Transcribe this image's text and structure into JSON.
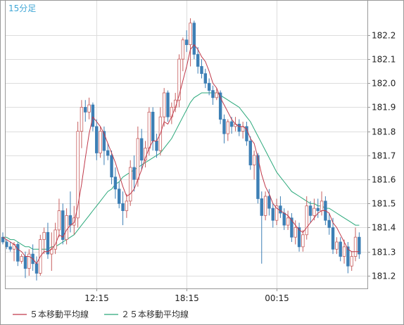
{
  "colors": {
    "frame": "#999999",
    "grid": "#dddddd",
    "up": "#c75f5f",
    "down": "#3d7fb5",
    "ma5": "#c0394a",
    "ma25": "#2aa87a",
    "interval_label": "#41a7d6"
  },
  "chart_data": {
    "type": "candlestick",
    "interval_label": "15分足",
    "y_ticks": [
      "182.2",
      "182.1",
      "182.0",
      "181.9",
      "181.8",
      "181.7",
      "181.6",
      "181.5",
      "181.4",
      "181.3",
      "181.2"
    ],
    "x_ticks": [
      "12:15",
      "18:15",
      "00:15"
    ],
    "ylim": [
      181.147,
      182.343
    ],
    "grid": true,
    "legend_position": "bottom-left",
    "legend": [
      {
        "label": "５本移動平均線",
        "series": "ma5"
      },
      {
        "label": "２５本移動平均線",
        "series": "ma25"
      }
    ],
    "candles_ohlc": [
      [
        181.36,
        181.38,
        181.33,
        181.34
      ],
      [
        181.34,
        181.35,
        181.31,
        181.32
      ],
      [
        181.32,
        181.34,
        181.3,
        181.31
      ],
      [
        181.31,
        181.34,
        181.26,
        181.33
      ],
      [
        181.33,
        181.34,
        181.24,
        181.26
      ],
      [
        181.26,
        181.29,
        181.25,
        181.28
      ],
      [
        181.28,
        181.3,
        181.19,
        181.23
      ],
      [
        181.23,
        181.31,
        181.2,
        181.29
      ],
      [
        181.29,
        181.33,
        181.22,
        181.25
      ],
      [
        181.25,
        181.28,
        181.18,
        181.21
      ],
      [
        181.21,
        181.37,
        181.2,
        181.35
      ],
      [
        181.35,
        181.4,
        181.29,
        181.38
      ],
      [
        181.38,
        181.42,
        181.27,
        181.29
      ],
      [
        181.29,
        181.38,
        181.22,
        181.31
      ],
      [
        181.31,
        181.42,
        181.29,
        181.39
      ],
      [
        181.39,
        181.52,
        181.36,
        181.47
      ],
      [
        181.47,
        181.5,
        181.33,
        181.35
      ],
      [
        181.35,
        181.48,
        181.33,
        181.45
      ],
      [
        181.45,
        181.55,
        181.38,
        181.41
      ],
      [
        181.41,
        181.49,
        181.37,
        181.44
      ],
      [
        181.44,
        181.84,
        181.4,
        181.8
      ],
      [
        181.8,
        181.93,
        181.73,
        181.9
      ],
      [
        181.9,
        181.93,
        181.84,
        181.88
      ],
      [
        181.88,
        181.94,
        181.85,
        181.91
      ],
      [
        181.91,
        181.92,
        181.8,
        181.82
      ],
      [
        181.82,
        181.85,
        181.68,
        181.71
      ],
      [
        181.71,
        181.82,
        181.69,
        181.8
      ],
      [
        181.8,
        181.82,
        181.66,
        181.72
      ],
      [
        181.72,
        181.75,
        181.68,
        181.7
      ],
      [
        181.7,
        181.72,
        181.58,
        181.61
      ],
      [
        181.61,
        181.65,
        181.52,
        181.56
      ],
      [
        181.56,
        181.59,
        181.48,
        181.5
      ],
      [
        181.5,
        181.55,
        181.41,
        181.47
      ],
      [
        181.47,
        181.54,
        181.44,
        181.51
      ],
      [
        181.51,
        181.68,
        181.49,
        181.65
      ],
      [
        181.65,
        181.7,
        181.55,
        181.6
      ],
      [
        181.6,
        181.82,
        181.57,
        181.77
      ],
      [
        181.77,
        181.81,
        181.64,
        181.68
      ],
      [
        181.68,
        181.76,
        181.65,
        181.73
      ],
      [
        181.73,
        181.9,
        181.7,
        181.88
      ],
      [
        181.88,
        181.9,
        181.72,
        181.76
      ],
      [
        181.76,
        181.79,
        181.69,
        181.72
      ],
      [
        181.72,
        181.9,
        181.7,
        181.86
      ],
      [
        181.86,
        181.98,
        181.82,
        181.96
      ],
      [
        181.96,
        181.97,
        181.84,
        181.86
      ],
      [
        181.86,
        181.92,
        181.83,
        181.9
      ],
      [
        181.9,
        181.96,
        181.88,
        181.93
      ],
      [
        181.93,
        182.12,
        181.9,
        182.1
      ],
      [
        182.1,
        182.19,
        182.05,
        182.18
      ],
      [
        182.18,
        182.22,
        182.13,
        182.16
      ],
      [
        182.16,
        182.27,
        182.07,
        182.25
      ],
      [
        182.25,
        182.26,
        182.1,
        182.12
      ],
      [
        182.12,
        182.15,
        182.04,
        182.07
      ],
      [
        182.07,
        182.1,
        182.02,
        182.04
      ],
      [
        182.04,
        182.06,
        181.98,
        182.0
      ],
      [
        182.0,
        182.02,
        181.95,
        181.97
      ],
      [
        181.97,
        181.99,
        181.91,
        181.94
      ],
      [
        181.94,
        181.98,
        181.93,
        181.96
      ],
      [
        181.96,
        181.97,
        181.83,
        181.85
      ],
      [
        181.85,
        181.87,
        181.75,
        181.79
      ],
      [
        181.79,
        181.85,
        181.76,
        181.84
      ],
      [
        181.84,
        181.86,
        181.79,
        181.82
      ],
      [
        181.82,
        181.86,
        181.8,
        181.83
      ],
      [
        181.83,
        181.85,
        181.78,
        181.8
      ],
      [
        181.8,
        181.84,
        181.77,
        181.82
      ],
      [
        181.82,
        181.84,
        181.74,
        181.76
      ],
      [
        181.76,
        181.78,
        181.64,
        181.66
      ],
      [
        181.66,
        181.72,
        181.6,
        181.7
      ],
      [
        181.7,
        181.71,
        181.5,
        181.52
      ],
      [
        181.52,
        181.55,
        181.25,
        181.45
      ],
      [
        181.45,
        181.55,
        181.43,
        181.53
      ],
      [
        181.53,
        181.56,
        181.45,
        181.48
      ],
      [
        181.48,
        181.5,
        181.4,
        181.43
      ],
      [
        181.43,
        181.52,
        181.41,
        181.49
      ],
      [
        181.49,
        181.53,
        181.44,
        181.46
      ],
      [
        181.46,
        181.48,
        181.39,
        181.41
      ],
      [
        181.41,
        181.47,
        181.39,
        181.44
      ],
      [
        181.44,
        181.46,
        181.34,
        181.36
      ],
      [
        181.36,
        181.43,
        181.33,
        181.4
      ],
      [
        181.4,
        181.42,
        181.3,
        181.32
      ],
      [
        181.32,
        181.39,
        181.3,
        181.37
      ],
      [
        181.37,
        181.53,
        181.35,
        181.49
      ],
      [
        181.49,
        181.51,
        181.42,
        181.45
      ],
      [
        181.45,
        181.52,
        181.43,
        181.48
      ],
      [
        181.48,
        181.52,
        181.44,
        181.47
      ],
      [
        181.47,
        181.55,
        181.45,
        181.51
      ],
      [
        181.51,
        181.53,
        181.41,
        181.43
      ],
      [
        181.43,
        181.46,
        181.37,
        181.4
      ],
      [
        181.4,
        181.44,
        181.29,
        181.31
      ],
      [
        181.31,
        181.36,
        181.29,
        181.34
      ],
      [
        181.34,
        181.36,
        181.26,
        181.28
      ],
      [
        181.28,
        181.35,
        181.25,
        181.32
      ],
      [
        181.32,
        181.34,
        181.21,
        181.24
      ],
      [
        181.24,
        181.3,
        181.22,
        181.28
      ],
      [
        181.28,
        181.4,
        181.26,
        181.36
      ],
      [
        181.36,
        181.38,
        181.27,
        181.29
      ]
    ],
    "ma5": [
      181.36,
      181.35,
      181.34,
      181.33,
      181.31,
      181.3,
      181.28,
      181.28,
      181.27,
      181.25,
      181.28,
      181.3,
      181.3,
      181.31,
      181.33,
      181.37,
      181.36,
      181.39,
      181.41,
      181.42,
      181.49,
      181.58,
      181.69,
      181.79,
      181.86,
      181.84,
      181.82,
      181.79,
      181.75,
      181.71,
      181.67,
      181.62,
      181.57,
      181.53,
      181.54,
      181.56,
      181.6,
      181.64,
      181.69,
      181.73,
      181.76,
      181.76,
      181.79,
      181.84,
      181.83,
      181.86,
      181.9,
      181.95,
      182.01,
      182.07,
      182.14,
      182.16,
      182.14,
      182.11,
      182.09,
      182.05,
      182.0,
      181.98,
      181.94,
      181.91,
      181.88,
      181.85,
      181.83,
      181.82,
      181.82,
      181.81,
      181.77,
      181.75,
      181.69,
      181.62,
      181.57,
      181.54,
      181.5,
      181.48,
      181.47,
      181.46,
      181.45,
      181.43,
      181.41,
      181.39,
      181.38,
      181.4,
      181.42,
      181.44,
      181.46,
      181.47,
      181.47,
      181.46,
      181.42,
      181.4,
      181.37,
      181.34,
      181.31,
      181.3,
      181.3,
      181.3
    ],
    "ma25": [
      181.36,
      181.36,
      181.35,
      181.35,
      181.34,
      181.33,
      181.32,
      181.32,
      181.31,
      181.31,
      181.31,
      181.31,
      181.31,
      181.32,
      181.32,
      181.33,
      181.34,
      181.35,
      181.36,
      181.37,
      181.39,
      181.41,
      181.43,
      181.45,
      181.47,
      181.49,
      181.51,
      181.53,
      181.55,
      181.56,
      181.58,
      181.59,
      181.61,
      181.62,
      181.63,
      181.64,
      181.65,
      181.66,
      181.67,
      181.68,
      181.69,
      181.7,
      181.71,
      181.73,
      181.75,
      181.77,
      181.8,
      181.83,
      181.86,
      181.89,
      181.92,
      181.94,
      181.95,
      181.96,
      181.96,
      181.96,
      181.96,
      181.96,
      181.95,
      181.94,
      181.93,
      181.92,
      181.91,
      181.9,
      181.88,
      181.86,
      181.84,
      181.81,
      181.78,
      181.75,
      181.72,
      181.69,
      181.66,
      181.63,
      181.61,
      181.59,
      181.57,
      181.55,
      181.54,
      181.53,
      181.52,
      181.51,
      181.5,
      181.5,
      181.49,
      181.49,
      181.48,
      181.48,
      181.47,
      181.46,
      181.45,
      181.44,
      181.43,
      181.42,
      181.41,
      181.41
    ]
  }
}
